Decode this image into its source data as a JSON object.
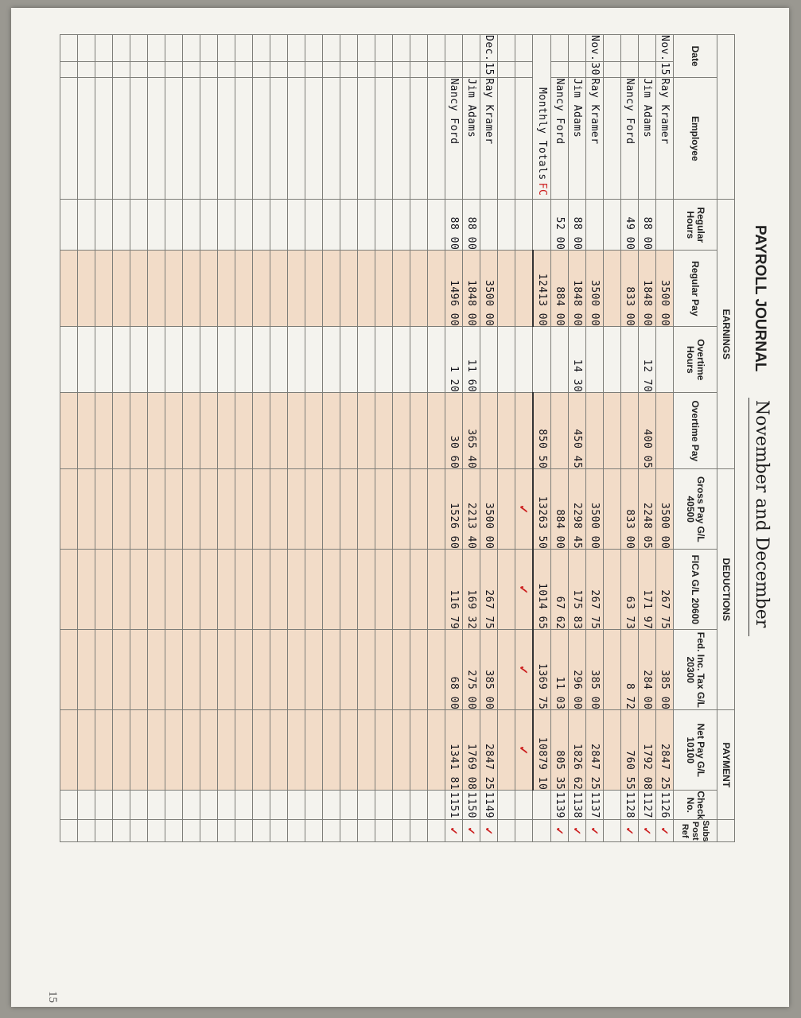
{
  "title": "PAYROLL JOURNAL",
  "period": "November and December",
  "page_number": "15",
  "groups": {
    "earnings": "EARNINGS",
    "deductions": "DEDUCTIONS",
    "payment": "PAYMENT"
  },
  "columns": {
    "date": "Date",
    "employee": "Employee",
    "regular_hours": "Regular Hours",
    "regular_pay": "Regular Pay",
    "overtime_hours": "Overtime Hours",
    "overtime_pay": "Overtime Pay",
    "gross_pay": "Gross Pay G/L 40500",
    "fica": "FICA G/L 20600",
    "fed_inc_tax": "Fed. Inc. Tax G/L 20300",
    "net_pay": "Net Pay G/L 10100",
    "check_no": "Check No.",
    "subs_post_ref": "Subs Post Ref"
  },
  "rows": [
    {
      "month": "Nov.",
      "day": "15",
      "employee": "Ray Kramer",
      "reg_hours": "",
      "reg_pay": "3500 00",
      "ot_hours": "",
      "ot_pay": "",
      "gross": "3500 00",
      "fica": "267 75",
      "fit": "385 00",
      "net": "2847 25",
      "check": "1126",
      "post": "✓"
    },
    {
      "month": "",
      "day": "",
      "employee": "Jim Adams",
      "reg_hours": "88 00",
      "reg_pay": "1848 00",
      "ot_hours": "12 70",
      "ot_pay": "400 05",
      "gross": "2248 05",
      "fica": "171 97",
      "fit": "284 00",
      "net": "1792 08",
      "check": "1127",
      "post": "✓"
    },
    {
      "month": "",
      "day": "",
      "employee": "Nancy Ford",
      "reg_hours": "49 00",
      "reg_pay": "833 00",
      "ot_hours": "",
      "ot_pay": "",
      "gross": "833 00",
      "fica": "63 73",
      "fit": "8 72",
      "net": "760 55",
      "check": "1128",
      "post": "✓"
    },
    {
      "month": "",
      "day": "",
      "employee": "",
      "reg_hours": "",
      "reg_pay": "",
      "ot_hours": "",
      "ot_pay": "",
      "gross": "",
      "fica": "",
      "fit": "",
      "net": "",
      "check": "",
      "post": ""
    },
    {
      "month": "Nov.",
      "day": "30",
      "employee": "Ray Kramer",
      "reg_hours": "",
      "reg_pay": "3500 00",
      "ot_hours": "",
      "ot_pay": "",
      "gross": "3500 00",
      "fica": "267 75",
      "fit": "385 00",
      "net": "2847 25",
      "check": "1137",
      "post": "✓"
    },
    {
      "month": "",
      "day": "",
      "employee": "Jim Adams",
      "reg_hours": "88 00",
      "reg_pay": "1848 00",
      "ot_hours": "14 30",
      "ot_pay": "450 45",
      "gross": "2298 45",
      "fica": "175 83",
      "fit": "296 00",
      "net": "1826 62",
      "check": "1138",
      "post": "✓"
    },
    {
      "month": "",
      "day": "",
      "employee": "Nancy Ford",
      "reg_hours": "52 00",
      "reg_pay": "884 00",
      "ot_hours": "",
      "ot_pay": "",
      "gross": "884 00",
      "fica": "67 62",
      "fit": "11 03",
      "net": "805 35",
      "check": "1139",
      "post": "✓"
    }
  ],
  "totals": {
    "label": "Monthly Totals",
    "mark": "FC",
    "reg_pay": "12413 00",
    "ot_pay": "850 50",
    "gross": "13263 50",
    "fica": "1014 65",
    "fit": "1369 75",
    "net": "10879 10",
    "checkmark": "✓"
  },
  "rows2": [
    {
      "month": "Dec.",
      "day": "15",
      "employee": "Ray Kramer",
      "reg_hours": "",
      "reg_pay": "3500 00",
      "ot_hours": "",
      "ot_pay": "",
      "gross": "3500 00",
      "fica": "267 75",
      "fit": "385 00",
      "net": "2847 25",
      "check": "1149",
      "post": "✓"
    },
    {
      "month": "",
      "day": "",
      "employee": "Jim Adams",
      "reg_hours": "88 00",
      "reg_pay": "1848 00",
      "ot_hours": "11 60",
      "ot_pay": "365 40",
      "gross": "2213 40",
      "fica": "169 32",
      "fit": "275 00",
      "net": "1769 08",
      "check": "1150",
      "post": "✓"
    },
    {
      "month": "",
      "day": "",
      "employee": "Nancy Ford",
      "reg_hours": "88 00",
      "reg_pay": "1496 00",
      "ot_hours": "1 20",
      "ot_pay": "30 60",
      "gross": "1526 60",
      "fica": "116 79",
      "fit": "68 00",
      "net": "1341 81",
      "check": "1151",
      "post": "✓"
    }
  ]
}
